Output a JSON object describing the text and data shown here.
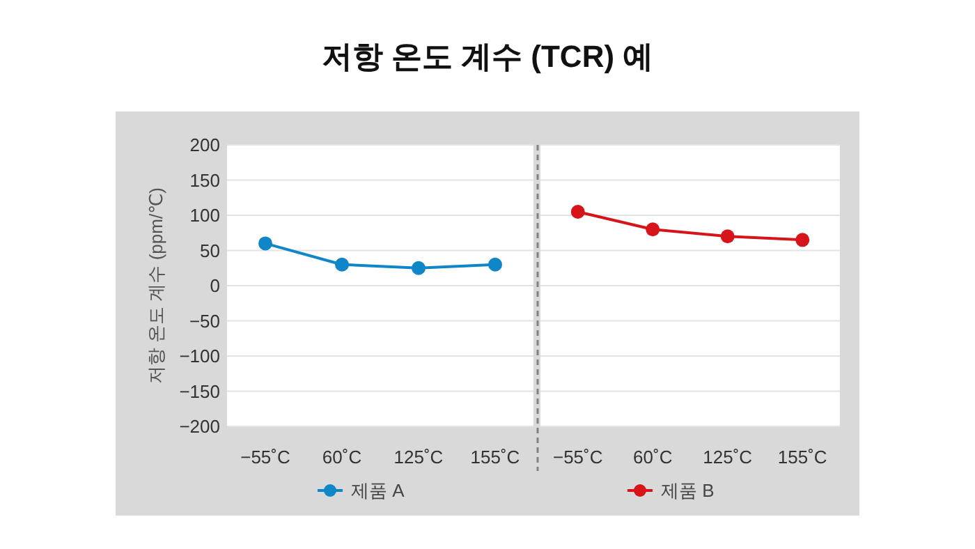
{
  "chart_data": [
    {
      "type": "line",
      "title": "저항 온도 계수 (TCR) 예",
      "ylabel": "저항 온도 계수 (ppm/℃)",
      "categories": [
        "−55˚C",
        "60˚C",
        "125˚C",
        "155˚C"
      ],
      "series": [
        {
          "name": "제품 A",
          "color": "#0f86c8",
          "values": [
            60,
            30,
            25,
            30
          ]
        }
      ],
      "ylim": [
        -200,
        200
      ],
      "yticks": [
        {
          "value": -200,
          "label": "−200"
        },
        {
          "value": -150,
          "label": "−150"
        },
        {
          "value": -100,
          "label": "−100"
        },
        {
          "value": -50,
          "label": "−50"
        },
        0,
        50,
        100,
        150,
        200
      ],
      "grid": "y",
      "legend": "bottom",
      "marker": "circle"
    },
    {
      "type": "line",
      "categories": [
        "−55˚C",
        "60˚C",
        "125˚C",
        "155˚C"
      ],
      "series": [
        {
          "name": "제품 B",
          "color": "#d7141a",
          "values": [
            105,
            80,
            70,
            65
          ]
        }
      ],
      "ylim": [
        -200,
        200
      ],
      "yticks": [
        -200,
        -150,
        -100,
        -50,
        0,
        50,
        100,
        150,
        200
      ],
      "grid": "y",
      "legend": "bottom",
      "marker": "circle",
      "tick_labels": "x"
    }
  ]
}
